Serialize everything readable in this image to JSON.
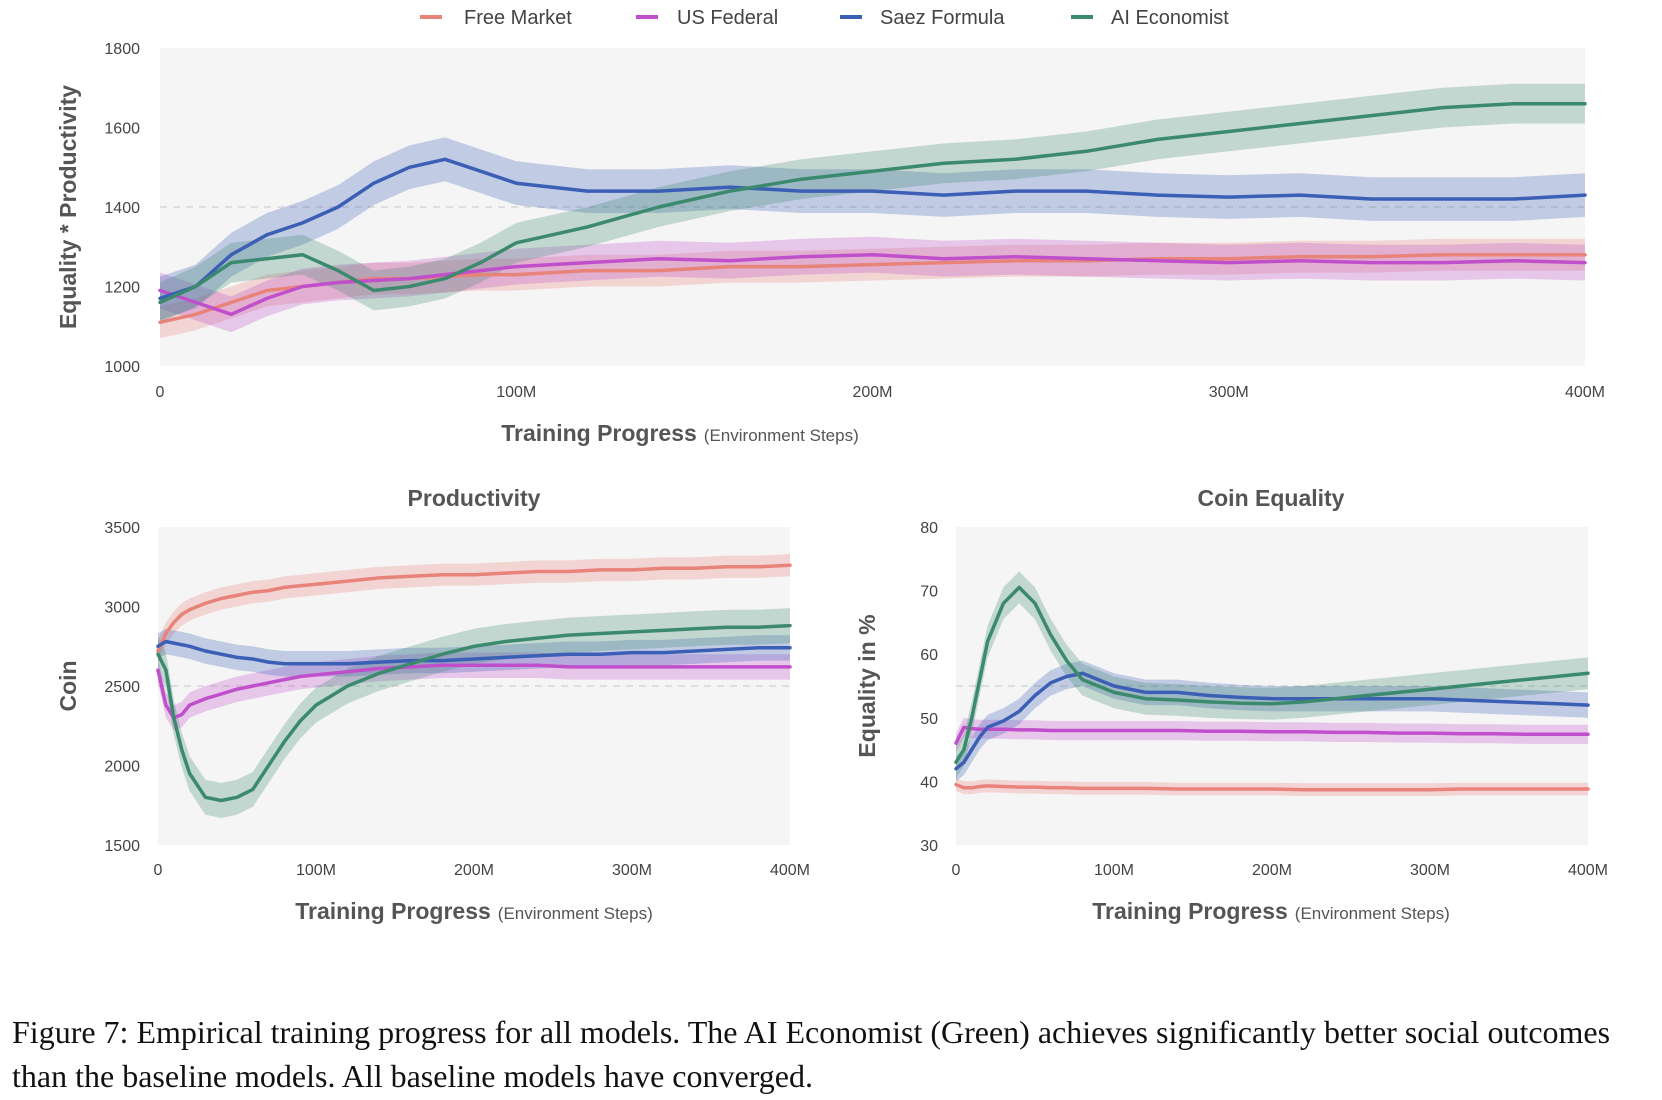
{
  "legend": [
    {
      "label": "Free Market",
      "color": "#e8837a"
    },
    {
      "label": "US Federal",
      "color": "#c04fcb"
    },
    {
      "label": "Saez Formula",
      "color": "#3b5fb5"
    },
    {
      "label": "AI Economist",
      "color": "#3c8a6e"
    }
  ],
  "caption": "Figure 7: Empirical training progress for all models. The AI Economist (Green) achieves significantly better social outcomes than the baseline models. All baseline models have converged.",
  "chart_data": [
    {
      "type": "line",
      "title": "",
      "xlabel": "Training Progress",
      "xlabel_sub": "(Environment Steps)",
      "ylabel": "Equality * Productivity",
      "xlim": [
        0,
        400
      ],
      "ylim": [
        1000,
        1800
      ],
      "xticks": [
        0,
        100,
        200,
        300,
        400
      ],
      "xtick_labels": [
        "0",
        "100M",
        "200M",
        "300M",
        "400M"
      ],
      "yticks": [
        1000,
        1200,
        1400,
        1600,
        1800
      ],
      "ytick_labels": [
        "1000",
        "1200",
        "1400",
        "1600",
        "1800"
      ],
      "ref_line": 1400,
      "grid": false,
      "x": [
        0,
        10,
        20,
        30,
        40,
        50,
        60,
        70,
        80,
        90,
        100,
        120,
        140,
        160,
        180,
        200,
        220,
        240,
        260,
        280,
        300,
        320,
        340,
        360,
        380,
        400
      ],
      "series": [
        {
          "name": "Free Market",
          "color": "#e8837a",
          "band": 40,
          "values": [
            1110,
            1130,
            1160,
            1190,
            1200,
            1210,
            1220,
            1220,
            1225,
            1230,
            1230,
            1240,
            1240,
            1250,
            1250,
            1255,
            1260,
            1265,
            1265,
            1270,
            1270,
            1275,
            1275,
            1280,
            1280,
            1280
          ]
        },
        {
          "name": "US Federal",
          "color": "#c04fcb",
          "band": 45,
          "values": [
            1190,
            1160,
            1130,
            1170,
            1200,
            1210,
            1215,
            1220,
            1230,
            1240,
            1250,
            1260,
            1270,
            1265,
            1275,
            1280,
            1270,
            1275,
            1270,
            1265,
            1260,
            1265,
            1260,
            1260,
            1265,
            1260
          ]
        },
        {
          "name": "Saez Formula",
          "color": "#3b5fb5",
          "band": 55,
          "values": [
            1170,
            1200,
            1280,
            1330,
            1360,
            1400,
            1460,
            1500,
            1520,
            1490,
            1460,
            1440,
            1440,
            1450,
            1440,
            1440,
            1430,
            1440,
            1440,
            1430,
            1425,
            1430,
            1420,
            1420,
            1420,
            1430
          ]
        },
        {
          "name": "AI Economist",
          "color": "#3c8a6e",
          "band": 50,
          "values": [
            1160,
            1200,
            1260,
            1270,
            1280,
            1240,
            1190,
            1200,
            1220,
            1260,
            1310,
            1350,
            1400,
            1440,
            1470,
            1490,
            1510,
            1520,
            1540,
            1570,
            1590,
            1610,
            1630,
            1650,
            1660,
            1660
          ]
        }
      ]
    },
    {
      "type": "line",
      "title": "Productivity",
      "xlabel": "Training Progress",
      "xlabel_sub": "(Environment Steps)",
      "ylabel": "Coin",
      "xlim": [
        0,
        400
      ],
      "ylim": [
        1500,
        3500
      ],
      "xticks": [
        0,
        100,
        200,
        300,
        400
      ],
      "xtick_labels": [
        "0",
        "100M",
        "200M",
        "300M",
        "400M"
      ],
      "yticks": [
        1500,
        2000,
        2500,
        3000,
        3500
      ],
      "ytick_labels": [
        "1500",
        "2000",
        "2500",
        "3000",
        "3500"
      ],
      "ref_line": 2500,
      "grid": false,
      "x": [
        0,
        5,
        10,
        15,
        20,
        30,
        40,
        50,
        60,
        70,
        80,
        90,
        100,
        120,
        140,
        160,
        180,
        200,
        220,
        240,
        260,
        280,
        300,
        320,
        340,
        360,
        380,
        400
      ],
      "series": [
        {
          "name": "Free Market",
          "color": "#e8837a",
          "band": 70,
          "values": [
            2720,
            2830,
            2900,
            2950,
            2980,
            3020,
            3050,
            3070,
            3090,
            3100,
            3120,
            3130,
            3140,
            3160,
            3180,
            3190,
            3200,
            3200,
            3210,
            3220,
            3220,
            3230,
            3230,
            3240,
            3240,
            3250,
            3250,
            3260
          ]
        },
        {
          "name": "US Federal",
          "color": "#c04fcb",
          "band": 80,
          "values": [
            2600,
            2380,
            2300,
            2320,
            2380,
            2420,
            2450,
            2480,
            2500,
            2520,
            2540,
            2560,
            2570,
            2590,
            2610,
            2620,
            2630,
            2630,
            2630,
            2630,
            2620,
            2620,
            2620,
            2620,
            2620,
            2620,
            2620,
            2620
          ]
        },
        {
          "name": "Saez Formula",
          "color": "#3b5fb5",
          "band": 80,
          "values": [
            2750,
            2780,
            2770,
            2760,
            2750,
            2720,
            2700,
            2680,
            2670,
            2650,
            2640,
            2640,
            2640,
            2640,
            2650,
            2660,
            2660,
            2670,
            2680,
            2690,
            2700,
            2700,
            2710,
            2710,
            2720,
            2730,
            2740,
            2740
          ]
        },
        {
          "name": "AI Economist",
          "color": "#3c8a6e",
          "band": 110,
          "values": [
            2700,
            2600,
            2300,
            2100,
            1950,
            1800,
            1780,
            1800,
            1850,
            2000,
            2150,
            2280,
            2380,
            2500,
            2580,
            2640,
            2700,
            2750,
            2780,
            2800,
            2820,
            2830,
            2840,
            2850,
            2860,
            2870,
            2870,
            2880
          ]
        }
      ]
    },
    {
      "type": "line",
      "title": "Coin Equality",
      "xlabel": "Training Progress",
      "xlabel_sub": "(Environment Steps)",
      "ylabel": "Equality in %",
      "xlim": [
        0,
        400
      ],
      "ylim": [
        30,
        80
      ],
      "xticks": [
        0,
        100,
        200,
        300,
        400
      ],
      "xtick_labels": [
        "0",
        "100M",
        "200M",
        "300M",
        "400M"
      ],
      "yticks": [
        30,
        40,
        50,
        60,
        70,
        80
      ],
      "ytick_labels": [
        "30",
        "40",
        "50",
        "60",
        "70",
        "80"
      ],
      "ref_line": 55,
      "grid": false,
      "x": [
        0,
        5,
        10,
        15,
        20,
        30,
        40,
        50,
        60,
        70,
        80,
        90,
        100,
        120,
        140,
        160,
        180,
        200,
        220,
        240,
        260,
        280,
        300,
        320,
        340,
        360,
        380,
        400
      ],
      "series": [
        {
          "name": "Free Market",
          "color": "#e8837a",
          "band": 1.0,
          "values": [
            39.5,
            39,
            39,
            39.2,
            39.3,
            39.2,
            39.1,
            39.1,
            39,
            39,
            38.9,
            38.9,
            38.9,
            38.9,
            38.8,
            38.8,
            38.8,
            38.8,
            38.7,
            38.7,
            38.7,
            38.7,
            38.7,
            38.8,
            38.8,
            38.8,
            38.8,
            38.8
          ]
        },
        {
          "name": "US Federal",
          "color": "#c04fcb",
          "band": 1.5,
          "values": [
            46,
            48.5,
            48.3,
            48.2,
            48.2,
            48.2,
            48.1,
            48.1,
            48,
            48,
            48,
            48,
            48,
            48,
            48,
            47.9,
            47.9,
            47.8,
            47.8,
            47.7,
            47.7,
            47.6,
            47.6,
            47.5,
            47.5,
            47.4,
            47.4,
            47.4
          ]
        },
        {
          "name": "Saez Formula",
          "color": "#3b5fb5",
          "band": 2.0,
          "values": [
            42,
            43,
            45,
            47,
            48.5,
            49.5,
            51,
            53.5,
            55.5,
            56.5,
            57,
            56,
            55,
            54,
            54,
            53.5,
            53.2,
            53,
            53,
            53,
            53,
            53,
            53,
            52.8,
            52.6,
            52.4,
            52.2,
            52
          ]
        },
        {
          "name": "AI Economist",
          "color": "#3c8a6e",
          "band": 2.5,
          "values": [
            43,
            45,
            50,
            56,
            62,
            68,
            70.5,
            68,
            63,
            59,
            56,
            55,
            54,
            53,
            52.8,
            52.5,
            52.3,
            52.2,
            52.5,
            53,
            53.5,
            54,
            54.5,
            55,
            55.5,
            56,
            56.5,
            57
          ]
        }
      ]
    }
  ]
}
